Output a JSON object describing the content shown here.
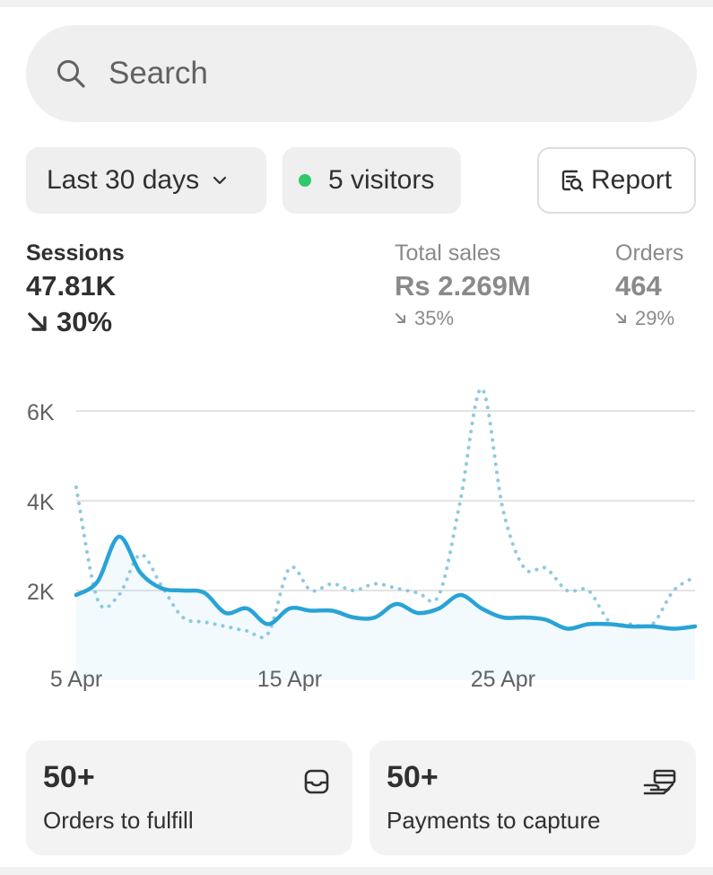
{
  "search": {
    "placeholder": "Search",
    "icon": "search-icon"
  },
  "filters": {
    "range_label": "Last 30 days",
    "range_icon": "chevron-down-icon",
    "visitors_label": "5 visitors",
    "visitors_dot_color": "#2ec96a",
    "report_label": "Report",
    "report_icon": "report-icon"
  },
  "metrics": [
    {
      "label": "Sessions",
      "value": "47.81K",
      "change": "30%",
      "direction": "down",
      "active": true
    },
    {
      "label": "Total sales",
      "value": "Rs 2.269M",
      "change": "35%",
      "direction": "down",
      "active": false
    },
    {
      "label": "Orders",
      "value": "464",
      "change": "29%",
      "direction": "down",
      "active": false
    }
  ],
  "chart_data": {
    "type": "line",
    "y_ticks": [
      "2K",
      "4K",
      "6K"
    ],
    "x_ticks": [
      "5 Apr",
      "15 Apr",
      "25 Apr"
    ],
    "ylim": [
      0,
      7000
    ],
    "grid": true,
    "colors": {
      "current": "#29a3d6",
      "previous": "#8ec9e2"
    },
    "x": [
      "5 Apr",
      "6 Apr",
      "7 Apr",
      "8 Apr",
      "9 Apr",
      "10 Apr",
      "11 Apr",
      "12 Apr",
      "13 Apr",
      "14 Apr",
      "15 Apr",
      "16 Apr",
      "17 Apr",
      "18 Apr",
      "19 Apr",
      "20 Apr",
      "21 Apr",
      "22 Apr",
      "23 Apr",
      "24 Apr",
      "25 Apr",
      "26 Apr",
      "27 Apr",
      "28 Apr",
      "29 Apr",
      "30 Apr",
      "1 May",
      "2 May",
      "3 May",
      "4 May"
    ],
    "series": [
      {
        "values": [
          1900,
          2200,
          3200,
          2400,
          2050,
          2000,
          1950,
          1500,
          1600,
          1250,
          1600,
          1550,
          1550,
          1400,
          1400,
          1700,
          1500,
          1600,
          1900,
          1600,
          1400,
          1400,
          1350,
          1150,
          1250,
          1250,
          1200,
          1200,
          1150,
          1200
        ]
      },
      {
        "values": [
          4300,
          1800,
          1900,
          2800,
          2100,
          1400,
          1300,
          1200,
          1100,
          1050,
          2500,
          2000,
          2150,
          2000,
          2150,
          2050,
          1950,
          1900,
          4000,
          6500,
          3800,
          2500,
          2500,
          2000,
          2000,
          1300,
          1250,
          1250,
          2000,
          2300
        ]
      }
    ]
  },
  "cards": [
    {
      "count": "50+",
      "label": "Orders to fulfill",
      "icon": "inbox-icon"
    },
    {
      "count": "50+",
      "label": "Payments to capture",
      "icon": "payment-hand-icon"
    }
  ]
}
